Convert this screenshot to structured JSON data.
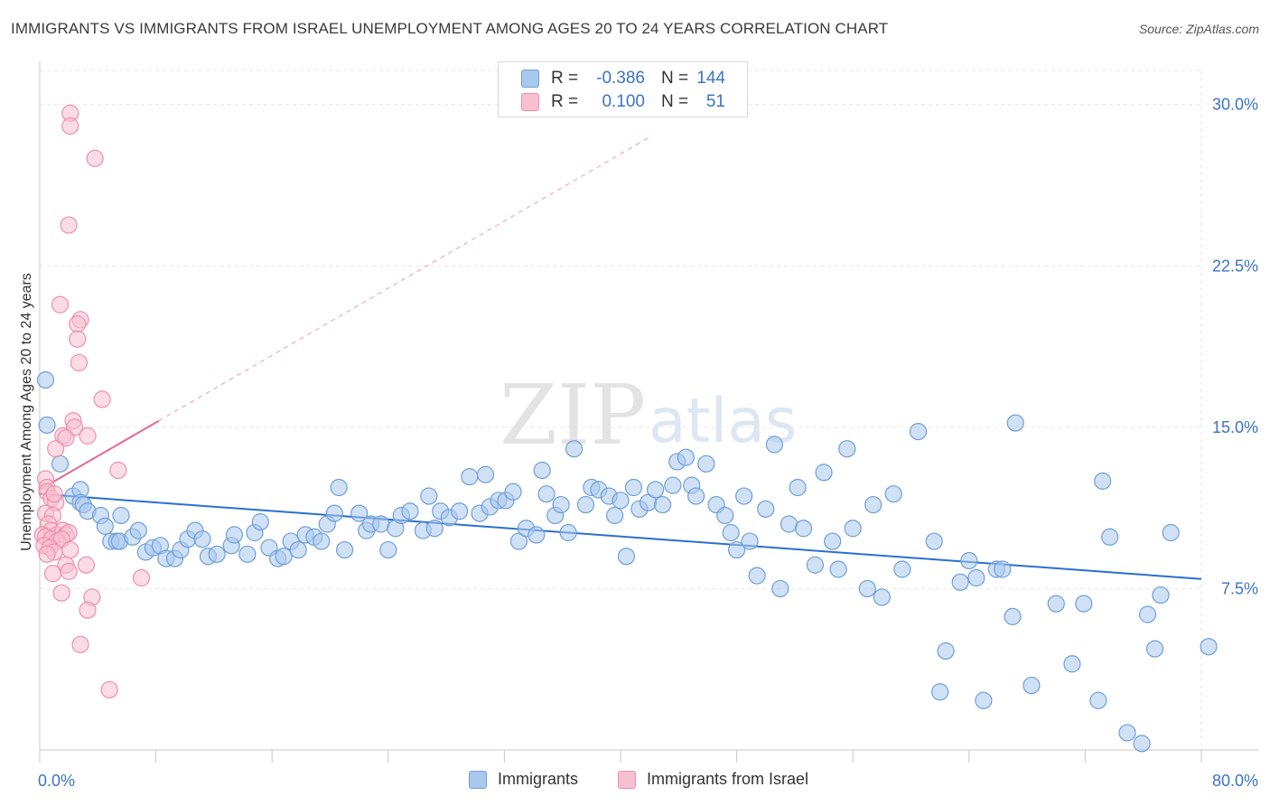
{
  "title": "IMMIGRANTS VS IMMIGRANTS FROM ISRAEL UNEMPLOYMENT AMONG AGES 20 TO 24 YEARS CORRELATION CHART",
  "source": "Source: ZipAtlas.com",
  "watermark": {
    "zip": "ZIP",
    "atlas": "atlas"
  },
  "colors": {
    "blue_fill": "#a9c8ee",
    "blue_stroke": "#6e9fd8",
    "blue_line": "#2b6fd0",
    "pink_fill": "#f7c0d0",
    "pink_stroke": "#ee8fab",
    "pink_line": "#e8688f",
    "axis_text": "#3b73c8",
    "grid": "#e6e6e6"
  },
  "stats": [
    {
      "series": "Immigrants",
      "r_label": "R =",
      "r": "-0.386",
      "n_label": "N =",
      "n": "144"
    },
    {
      "series": "Immigrants from Israel",
      "r_label": "R =",
      "r": "0.100",
      "n_label": "N =",
      "n": "51"
    }
  ],
  "chart_data": {
    "type": "scatter",
    "title": "IMMIGRANTS VS IMMIGRANTS FROM ISRAEL UNEMPLOYMENT AMONG AGES 20 TO 24 YEARS CORRELATION CHART",
    "xlabel": "",
    "ylabel": "Unemployment Among Ages 20 to 24 years",
    "xlim": [
      0,
      80
    ],
    "ylim": [
      0,
      31.5
    ],
    "x_tick_labels": {
      "min": "0.0%",
      "max": "80.0%"
    },
    "y_ticks": [
      {
        "value": 7.5,
        "label": "7.5%"
      },
      {
        "value": 15.0,
        "label": "15.0%"
      },
      {
        "value": 22.5,
        "label": "22.5%"
      },
      {
        "value": 30.0,
        "label": "30.0%"
      }
    ],
    "series": [
      {
        "name": "Immigrants",
        "color": "blue",
        "trend": {
          "x0": 0,
          "y0": 11.9,
          "x1": 80,
          "y1": 7.95
        },
        "points": [
          [
            0.4,
            17.2
          ],
          [
            0.5,
            15.1
          ],
          [
            1.4,
            13.3
          ],
          [
            2.3,
            11.8
          ],
          [
            2.8,
            12.1
          ],
          [
            2.8,
            11.5
          ],
          [
            3.0,
            11.4
          ],
          [
            3.3,
            11.1
          ],
          [
            4.2,
            10.9
          ],
          [
            4.5,
            10.4
          ],
          [
            4.9,
            9.7
          ],
          [
            5.3,
            9.7
          ],
          [
            5.5,
            9.7
          ],
          [
            5.6,
            10.9
          ],
          [
            6.4,
            9.9
          ],
          [
            6.8,
            10.2
          ],
          [
            7.3,
            9.2
          ],
          [
            7.8,
            9.4
          ],
          [
            8.3,
            9.5
          ],
          [
            8.7,
            8.9
          ],
          [
            9.3,
            8.9
          ],
          [
            9.7,
            9.3
          ],
          [
            10.2,
            9.8
          ],
          [
            10.7,
            10.2
          ],
          [
            11.2,
            9.8
          ],
          [
            11.6,
            9.0
          ],
          [
            12.2,
            9.1
          ],
          [
            13.2,
            9.5
          ],
          [
            13.4,
            10.0
          ],
          [
            14.3,
            9.1
          ],
          [
            14.8,
            10.1
          ],
          [
            15.2,
            10.6
          ],
          [
            15.8,
            9.4
          ],
          [
            16.4,
            8.9
          ],
          [
            16.8,
            9.0
          ],
          [
            17.3,
            9.7
          ],
          [
            17.8,
            9.3
          ],
          [
            18.3,
            10.0
          ],
          [
            18.9,
            9.9
          ],
          [
            19.4,
            9.7
          ],
          [
            19.8,
            10.5
          ],
          [
            20.3,
            11.0
          ],
          [
            20.6,
            12.2
          ],
          [
            21.0,
            9.3
          ],
          [
            22.0,
            11.0
          ],
          [
            22.5,
            10.2
          ],
          [
            22.8,
            10.5
          ],
          [
            23.5,
            10.5
          ],
          [
            24.0,
            9.3
          ],
          [
            24.5,
            10.3
          ],
          [
            24.9,
            10.9
          ],
          [
            25.5,
            11.1
          ],
          [
            26.4,
            10.2
          ],
          [
            26.8,
            11.8
          ],
          [
            27.2,
            10.3
          ],
          [
            27.6,
            11.1
          ],
          [
            28.2,
            10.8
          ],
          [
            28.9,
            11.1
          ],
          [
            29.6,
            12.7
          ],
          [
            30.3,
            11.0
          ],
          [
            30.7,
            12.8
          ],
          [
            31.0,
            11.3
          ],
          [
            31.6,
            11.6
          ],
          [
            32.1,
            11.6
          ],
          [
            32.6,
            12.0
          ],
          [
            33.0,
            9.7
          ],
          [
            33.5,
            10.3
          ],
          [
            34.2,
            10.0
          ],
          [
            34.6,
            13.0
          ],
          [
            34.9,
            11.9
          ],
          [
            35.5,
            10.9
          ],
          [
            35.9,
            11.4
          ],
          [
            36.4,
            10.1
          ],
          [
            36.8,
            14.0
          ],
          [
            37.6,
            11.4
          ],
          [
            38.0,
            12.2
          ],
          [
            38.5,
            12.1
          ],
          [
            39.2,
            11.8
          ],
          [
            39.6,
            10.9
          ],
          [
            40.0,
            11.6
          ],
          [
            40.4,
            9.0
          ],
          [
            40.9,
            12.2
          ],
          [
            41.3,
            11.2
          ],
          [
            41.9,
            11.5
          ],
          [
            42.4,
            12.1
          ],
          [
            42.9,
            11.4
          ],
          [
            43.6,
            12.3
          ],
          [
            43.9,
            13.4
          ],
          [
            44.5,
            13.6
          ],
          [
            44.9,
            12.3
          ],
          [
            45.2,
            11.8
          ],
          [
            45.9,
            13.3
          ],
          [
            46.6,
            11.4
          ],
          [
            47.2,
            10.9
          ],
          [
            47.6,
            10.1
          ],
          [
            48.0,
            9.3
          ],
          [
            48.5,
            11.8
          ],
          [
            48.9,
            9.7
          ],
          [
            49.4,
            8.1
          ],
          [
            50.0,
            11.2
          ],
          [
            50.6,
            14.2
          ],
          [
            51.0,
            7.5
          ],
          [
            51.6,
            10.5
          ],
          [
            52.2,
            12.2
          ],
          [
            52.6,
            10.3
          ],
          [
            53.4,
            8.6
          ],
          [
            54.0,
            12.9
          ],
          [
            54.6,
            9.7
          ],
          [
            55.0,
            8.4
          ],
          [
            55.6,
            14.0
          ],
          [
            56.0,
            10.3
          ],
          [
            57.0,
            7.5
          ],
          [
            57.4,
            11.4
          ],
          [
            58.0,
            7.1
          ],
          [
            58.8,
            11.9
          ],
          [
            59.4,
            8.4
          ],
          [
            60.5,
            14.8
          ],
          [
            61.6,
            9.7
          ],
          [
            62.0,
            2.7
          ],
          [
            62.4,
            4.6
          ],
          [
            63.4,
            7.8
          ],
          [
            64.0,
            8.8
          ],
          [
            64.5,
            8.0
          ],
          [
            65.0,
            2.3
          ],
          [
            65.9,
            8.4
          ],
          [
            66.3,
            8.4
          ],
          [
            67.0,
            6.2
          ],
          [
            67.2,
            15.2
          ],
          [
            68.3,
            3.0
          ],
          [
            70.0,
            6.8
          ],
          [
            71.1,
            4.0
          ],
          [
            71.9,
            6.8
          ],
          [
            72.9,
            2.3
          ],
          [
            73.2,
            12.5
          ],
          [
            73.7,
            9.9
          ],
          [
            74.9,
            0.8
          ],
          [
            75.9,
            0.3
          ],
          [
            76.3,
            6.3
          ],
          [
            76.8,
            4.7
          ],
          [
            77.2,
            7.2
          ],
          [
            77.9,
            10.1
          ],
          [
            80.5,
            4.8
          ]
        ]
      },
      {
        "name": "Immigrants from Israel",
        "color": "pink",
        "trend": {
          "x0": 0,
          "y0": 12.1,
          "x1": 8.2,
          "y1": 15.3
        },
        "points": [
          [
            2.1,
            29.6
          ],
          [
            2.1,
            29.0
          ],
          [
            3.8,
            27.5
          ],
          [
            2.0,
            24.4
          ],
          [
            1.4,
            20.7
          ],
          [
            2.8,
            20.0
          ],
          [
            2.6,
            19.8
          ],
          [
            2.6,
            19.1
          ],
          [
            2.7,
            18.0
          ],
          [
            4.3,
            16.3
          ],
          [
            2.3,
            15.3
          ],
          [
            2.4,
            15.0
          ],
          [
            1.6,
            14.6
          ],
          [
            1.8,
            14.5
          ],
          [
            3.3,
            14.6
          ],
          [
            1.1,
            14.0
          ],
          [
            5.4,
            13.0
          ],
          [
            0.4,
            12.6
          ],
          [
            0.5,
            12.2
          ],
          [
            0.5,
            12.0
          ],
          [
            0.8,
            11.7
          ],
          [
            1.1,
            11.5
          ],
          [
            0.4,
            11.0
          ],
          [
            0.9,
            10.9
          ],
          [
            0.6,
            10.5
          ],
          [
            0.8,
            10.2
          ],
          [
            1.2,
            10.0
          ],
          [
            1.6,
            10.2
          ],
          [
            1.8,
            10.0
          ],
          [
            2.0,
            10.1
          ],
          [
            0.2,
            10.0
          ],
          [
            0.4,
            9.9
          ],
          [
            0.8,
            9.8
          ],
          [
            1.2,
            9.7
          ],
          [
            1.5,
            9.8
          ],
          [
            0.3,
            9.5
          ],
          [
            0.7,
            9.4
          ],
          [
            1.0,
            9.2
          ],
          [
            1.8,
            8.6
          ],
          [
            3.2,
            8.6
          ],
          [
            0.9,
            8.2
          ],
          [
            2.0,
            8.3
          ],
          [
            7.0,
            8.0
          ],
          [
            1.5,
            7.3
          ],
          [
            3.6,
            7.1
          ],
          [
            3.3,
            6.5
          ],
          [
            2.8,
            4.9
          ],
          [
            4.8,
            2.8
          ],
          [
            0.5,
            9.1
          ],
          [
            2.1,
            9.3
          ],
          [
            1.0,
            11.9
          ]
        ]
      }
    ],
    "legend": [
      "Immigrants",
      "Immigrants from Israel"
    ],
    "legend_position": "bottom-center",
    "grid": true
  }
}
